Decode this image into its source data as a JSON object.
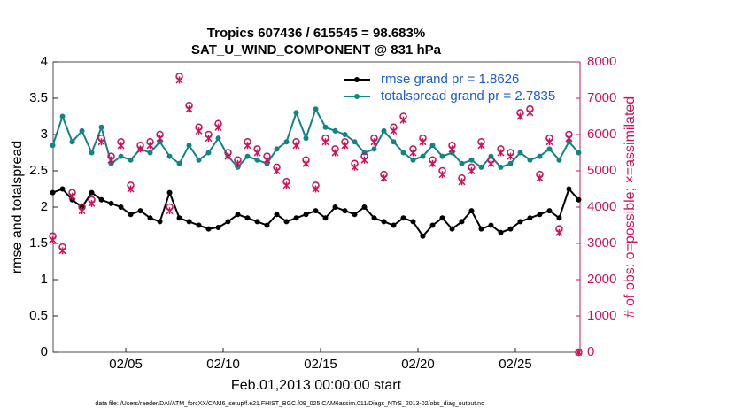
{
  "chart_data": {
    "type": "line",
    "title": "Tropics 607436 / 615545 = 98.683%",
    "subtitle": "SAT_U_WIND_COMPONENT @ 831 hPa",
    "xlabel": "Feb.01,2013 00:00:00 start",
    "ylabel": "rmse and totalspread",
    "y2label": "# of obs: o=possible; ×=assimilated",
    "footnote": "data file: /Users/raeder/DAI/ATM_forcXX/CAM6_setup/f.e21.FHIST_BGC.f09_025.CAM6assim.011/Diags_NTrS_2013-02/obs_diag_output.nc",
    "legend": "upper right",
    "x": [
      1.25,
      1.75,
      2.25,
      2.75,
      3.25,
      3.75,
      4.25,
      4.75,
      5.25,
      5.75,
      6.25,
      6.75,
      7.25,
      7.75,
      8.25,
      8.75,
      9.25,
      9.75,
      10.25,
      10.75,
      11.25,
      11.75,
      12.25,
      12.75,
      13.25,
      13.75,
      14.25,
      14.75,
      15.25,
      15.75,
      16.25,
      16.75,
      17.25,
      17.75,
      18.25,
      18.75,
      19.25,
      19.75,
      20.25,
      20.75,
      21.25,
      21.75,
      22.25,
      22.75,
      23.25,
      23.75,
      24.25,
      24.75,
      25.25,
      25.75,
      26.25,
      26.75,
      27.25,
      27.75,
      28.25
    ],
    "series": [
      {
        "name": "rmse grand pr = 1.8626",
        "color": "#000000",
        "axis": "y",
        "marker": "dot",
        "values": [
          2.2,
          2.25,
          2.1,
          2.0,
          2.2,
          2.1,
          2.05,
          2.0,
          1.9,
          1.95,
          1.85,
          1.8,
          2.2,
          1.85,
          1.8,
          1.75,
          1.7,
          1.72,
          1.8,
          1.9,
          1.85,
          1.8,
          1.75,
          1.9,
          1.8,
          1.85,
          1.9,
          1.95,
          1.85,
          2.0,
          1.95,
          1.9,
          2.0,
          1.85,
          1.8,
          1.75,
          1.85,
          1.8,
          1.6,
          1.75,
          1.85,
          1.7,
          1.8,
          1.95,
          1.7,
          1.75,
          1.65,
          1.7,
          1.8,
          1.85,
          1.9,
          1.95,
          1.85,
          2.25,
          2.1
        ]
      },
      {
        "name": "totalspread grand pr = 2.7835",
        "color": "#138484",
        "axis": "y",
        "marker": "dot",
        "values": [
          2.85,
          3.25,
          2.9,
          3.05,
          2.75,
          3.1,
          2.6,
          2.7,
          2.65,
          2.8,
          2.75,
          2.9,
          2.7,
          2.6,
          2.85,
          2.65,
          2.75,
          2.95,
          2.7,
          2.55,
          2.7,
          2.65,
          2.6,
          2.8,
          2.9,
          3.3,
          2.95,
          3.35,
          3.1,
          3.05,
          3.0,
          2.9,
          2.75,
          2.8,
          3.05,
          2.9,
          2.75,
          2.65,
          2.7,
          2.85,
          2.7,
          2.75,
          2.6,
          2.65,
          2.55,
          2.7,
          2.55,
          2.6,
          2.75,
          2.65,
          2.7,
          2.8,
          2.65,
          2.9,
          2.75
        ]
      },
      {
        "color": "#d0105a",
        "axis": "y2",
        "marker": "circle",
        "values": [
          3200,
          2900,
          4400,
          4000,
          4200,
          5900,
          5400,
          5800,
          4600,
          5700,
          5800,
          6000,
          4000,
          7600,
          6800,
          6200,
          6000,
          6300,
          5500,
          5300,
          5800,
          5600,
          5400,
          5100,
          4700,
          5800,
          5300,
          4600,
          5900,
          5600,
          5800,
          5200,
          5400,
          5900,
          4900,
          6200,
          6500,
          5600,
          5900,
          5300,
          5000,
          5700,
          4800,
          5100,
          5800,
          5300,
          5600,
          5500,
          6600,
          6700,
          4900,
          5900,
          3400,
          6000,
          0
        ]
      },
      {
        "color": "#d0105a",
        "axis": "y2",
        "marker": "cross",
        "values": [
          3100,
          2800,
          4300,
          3900,
          4100,
          5800,
          5300,
          5700,
          4500,
          5600,
          5700,
          5900,
          3900,
          7500,
          6700,
          6100,
          5900,
          6200,
          5400,
          5200,
          5700,
          5500,
          5300,
          5000,
          4600,
          5700,
          5200,
          4500,
          5800,
          5500,
          5700,
          5100,
          5300,
          5800,
          4800,
          6100,
          6400,
          5500,
          5800,
          5200,
          4900,
          5600,
          4700,
          5000,
          5700,
          5200,
          5500,
          5400,
          6500,
          6600,
          4800,
          5800,
          3300,
          5900,
          0
        ]
      }
    ],
    "xlim": [
      1.27,
      28.32
    ],
    "xticks": [
      {
        "value": 5,
        "label": "02/05"
      },
      {
        "value": 10,
        "label": "02/10"
      },
      {
        "value": 15,
        "label": "02/15"
      },
      {
        "value": 20,
        "label": "02/20"
      },
      {
        "value": 25,
        "label": "02/25"
      }
    ],
    "ylim": [
      0,
      4
    ],
    "yticks": [
      0,
      0.5,
      1,
      1.5,
      2,
      2.5,
      3,
      3.5,
      4
    ],
    "y2lim": [
      0,
      8000
    ],
    "y2ticks": [
      0,
      1000,
      2000,
      3000,
      4000,
      5000,
      6000,
      7000,
      8000
    ]
  }
}
